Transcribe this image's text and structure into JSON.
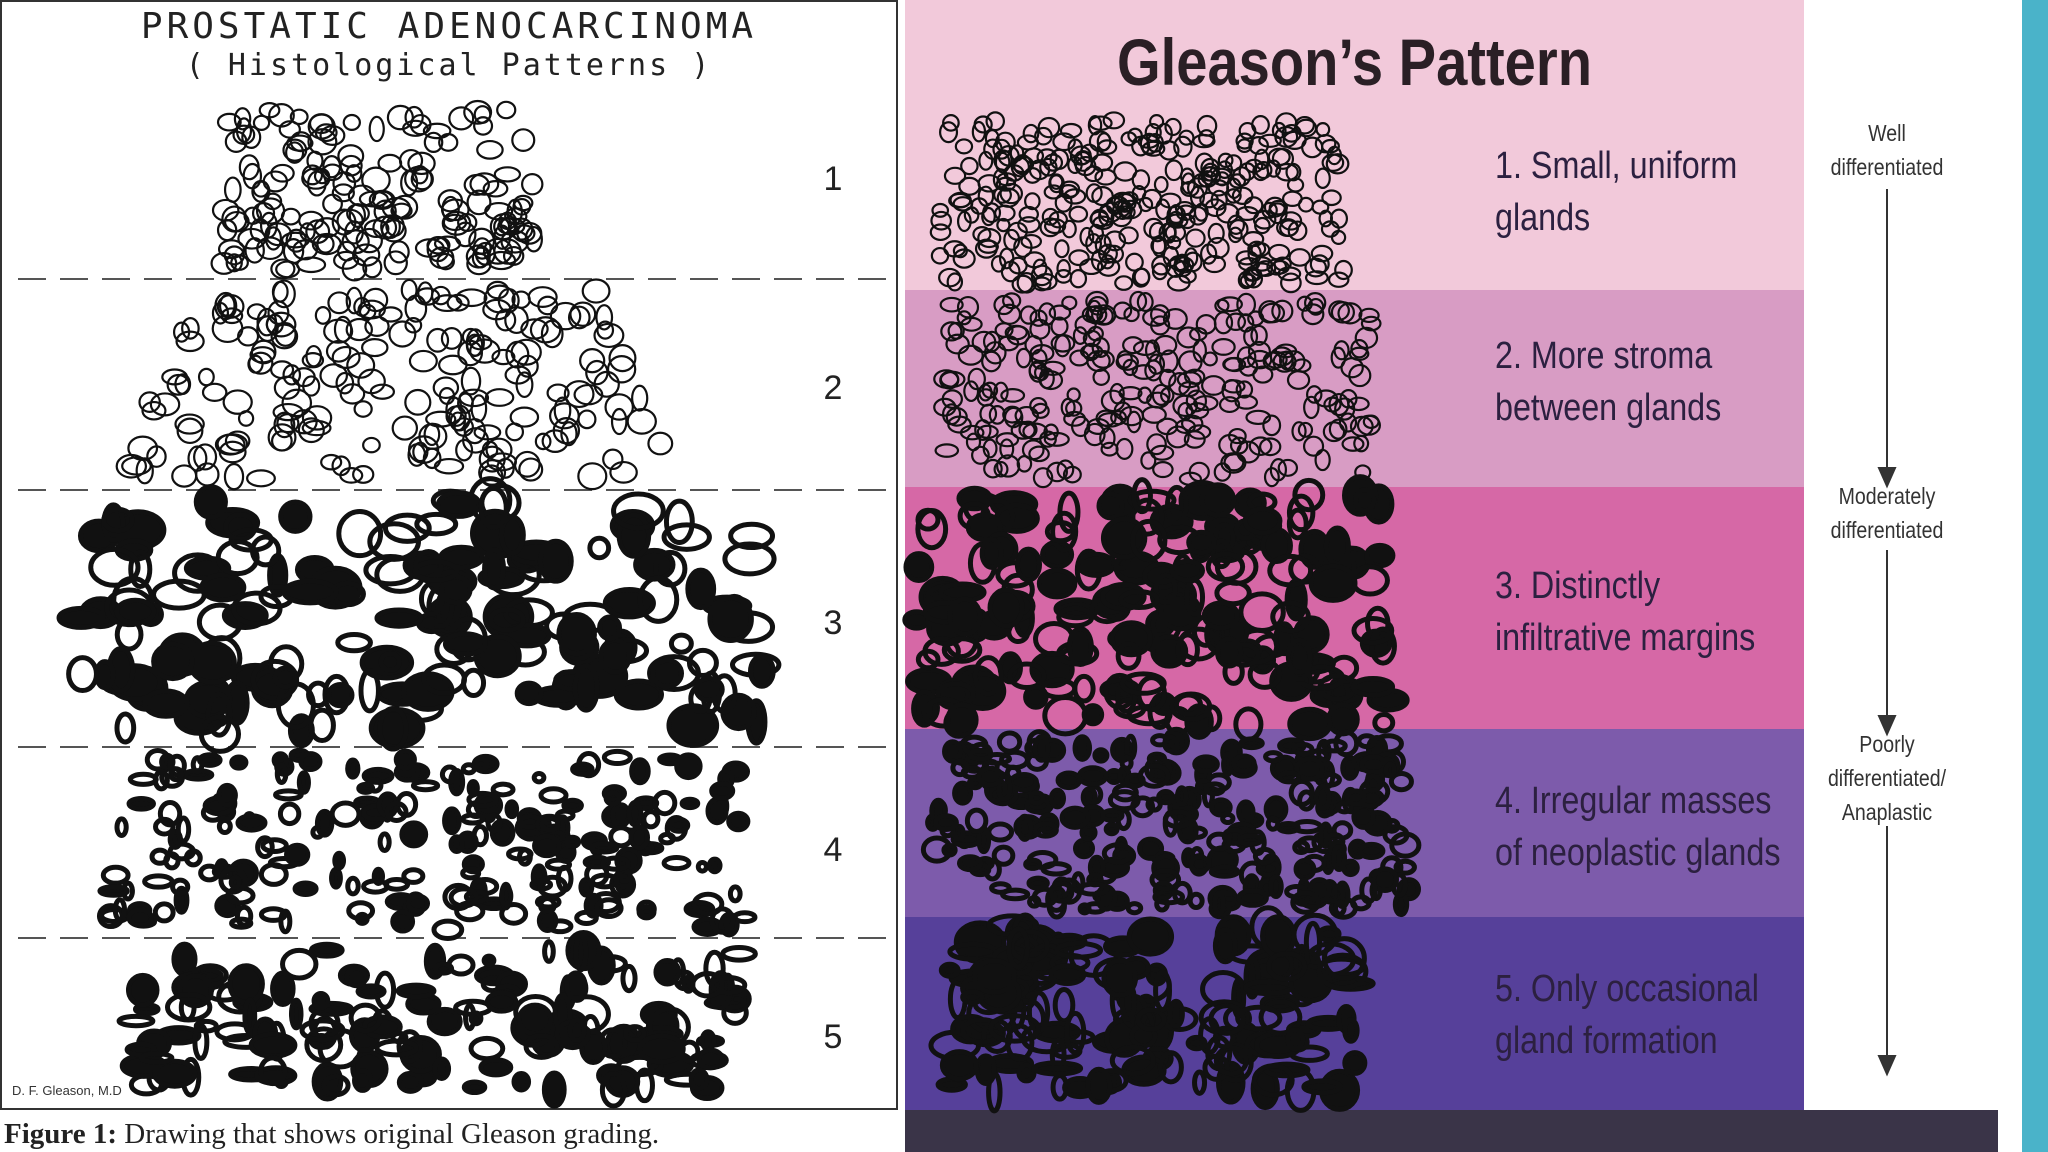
{
  "left": {
    "title": "PROSTATIC ADENOCARCINOMA",
    "subtitle": "( Histological Patterns )",
    "grades": [
      "1",
      "2",
      "3",
      "4",
      "5"
    ],
    "signature": "D. F. Gleason, M.D",
    "caption": {
      "label": "Figure 1:",
      "text": "Drawing that shows original Gleason grading."
    }
  },
  "right": {
    "title": "Gleason’s Pattern",
    "patterns": [
      {
        "lines": [
          "1. Small, uniform",
          "glands"
        ]
      },
      {
        "lines": [
          "2. More stroma",
          "between glands"
        ]
      },
      {
        "lines": [
          "3. Distinctly",
          "infiltrative margins"
        ]
      },
      {
        "lines": [
          "4. Irregular masses",
          "of neoplastic glands"
        ]
      },
      {
        "lines": [
          "5. Only occasional",
          "gland formation"
        ]
      }
    ],
    "scale": [
      {
        "lines": [
          "Well",
          "differentiated"
        ]
      },
      {
        "lines": [
          "Moderately",
          "differentiated"
        ]
      },
      {
        "lines": [
          "Poorly",
          "differentiated/",
          "Anaplastic"
        ]
      }
    ]
  }
}
